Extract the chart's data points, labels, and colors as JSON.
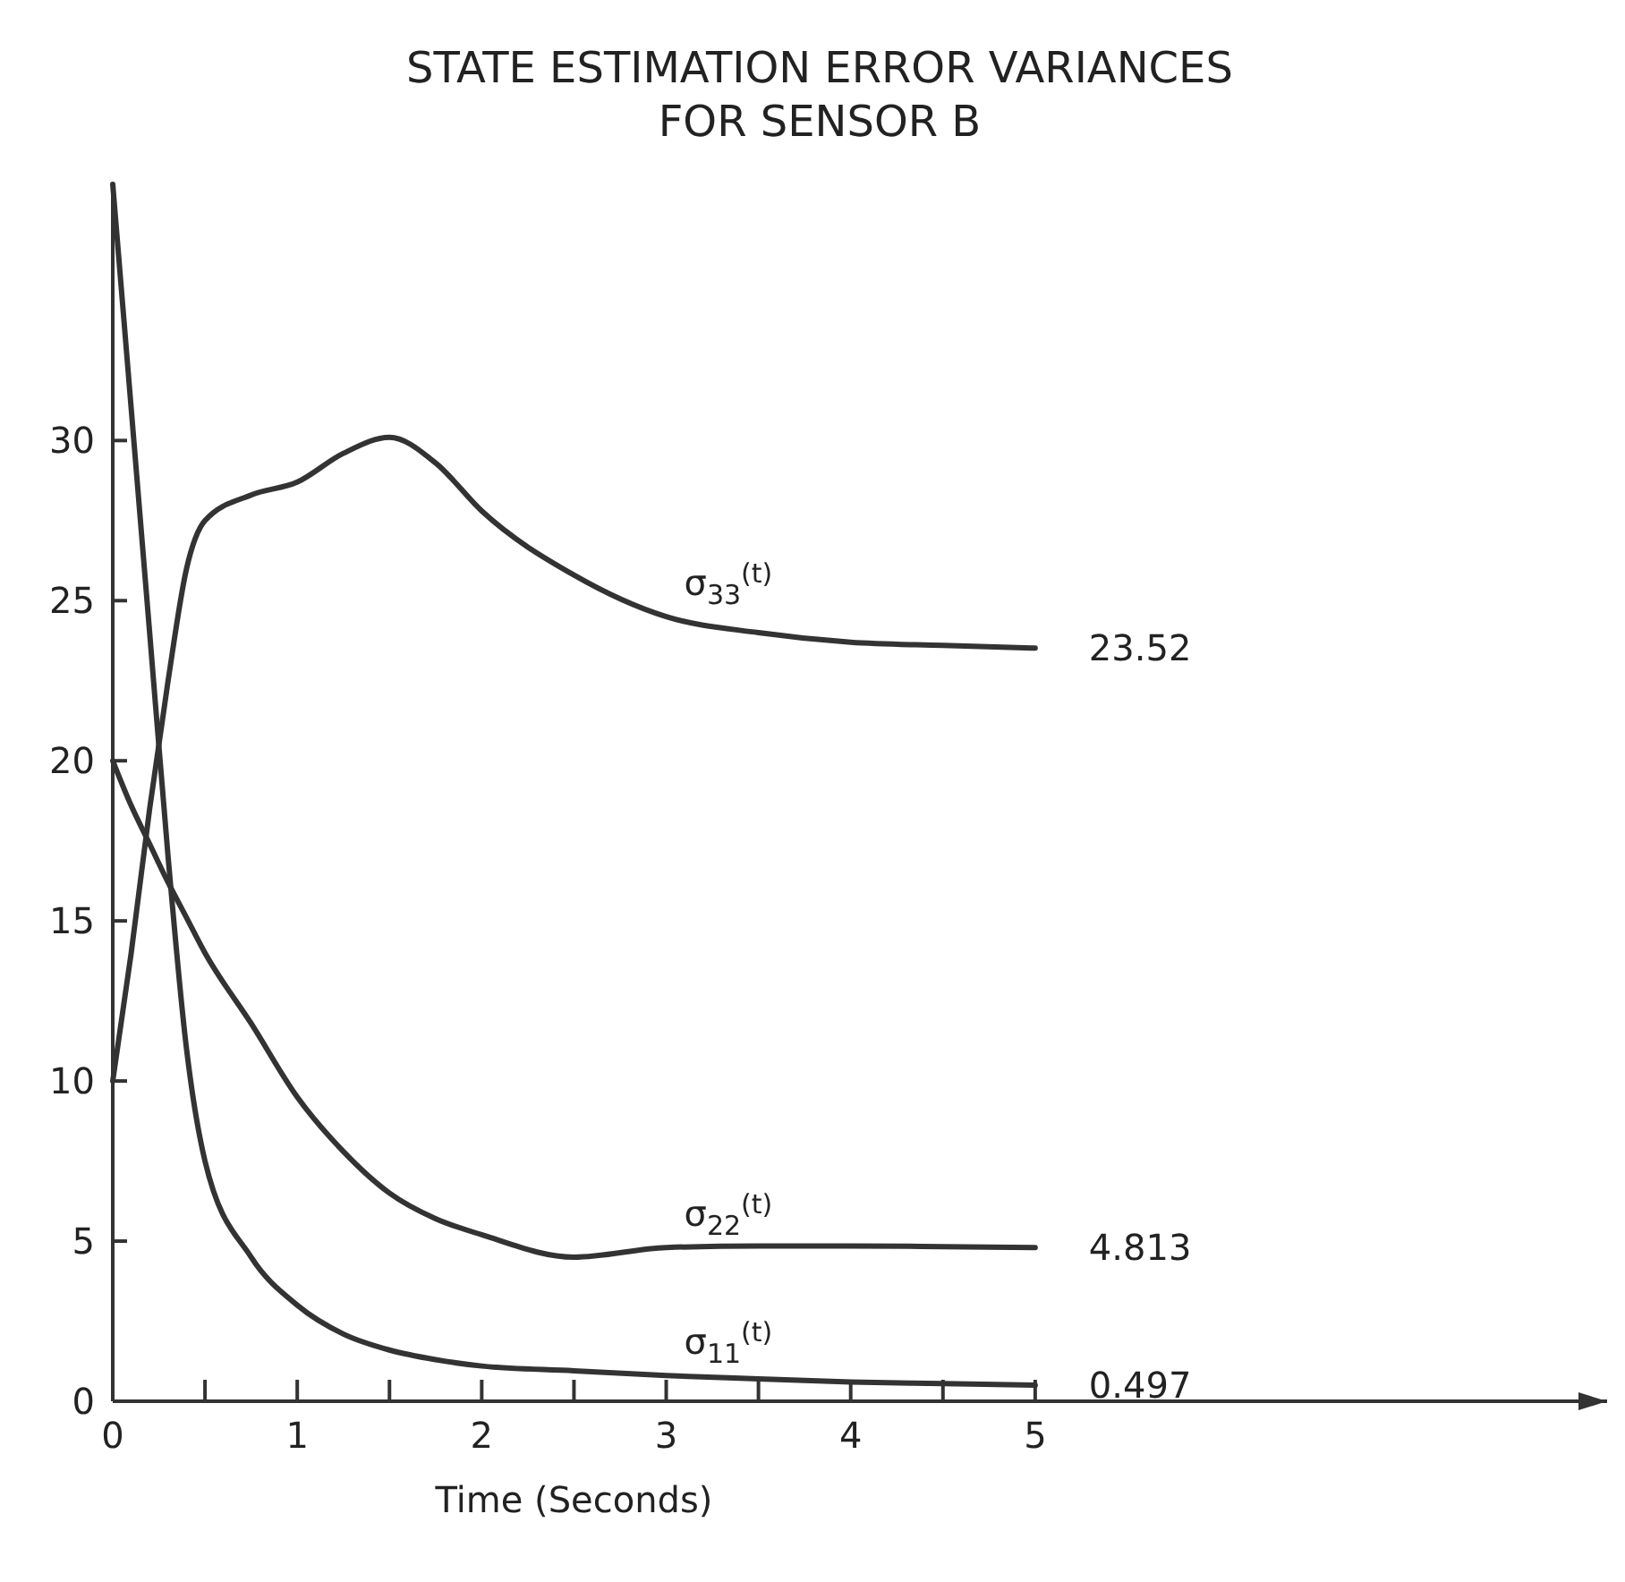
{
  "chart_data": {
    "type": "line",
    "title": "STATE ESTIMATION ERROR VARIANCES\nFOR SENSOR B",
    "xlabel": "Time (Seconds)",
    "x": [
      0,
      0.1,
      0.2,
      0.3,
      0.4,
      0.5,
      0.75,
      1,
      1.25,
      1.5,
      1.75,
      2,
      2.5,
      3,
      3.5,
      4,
      4.5,
      5
    ],
    "series": [
      {
        "name": "σ$_{33}$$^{(t)}$",
        "color": "#333333",
        "values": [
          10,
          14,
          18.5,
          22.5,
          26,
          27.5,
          28.3,
          28.7,
          29.6,
          30.1,
          29.3,
          27.8,
          25.8,
          24.5,
          24,
          23.7,
          23.6,
          23.52
        ]
      },
      {
        "name": "σ$_{22}$$^{(t)}$",
        "color": "#333333",
        "values": [
          20,
          18.6,
          17.4,
          16.2,
          15.1,
          14,
          11.8,
          9.5,
          7.8,
          6.5,
          5.7,
          5.2,
          4.5,
          4.8,
          4.85,
          4.85,
          4.83,
          4.8
        ]
      },
      {
        "name": "σ$_{11}$$^{(t)}$",
        "color": "#333333",
        "values": [
          38,
          31,
          24,
          17,
          11,
          7.5,
          4.5,
          3,
          2.1,
          1.6,
          1.3,
          1.1,
          0.95,
          0.8,
          0.7,
          0.6,
          0.55,
          0.5
        ]
      }
    ],
    "annotations": [
      "23.52",
      "4.813",
      "0.497"
    ],
    "xlim": [
      0,
      8.1
    ],
    "ylim": [
      0,
      38
    ],
    "xticks": [
      0,
      {
        "value": 0.5,
        "label": null
      },
      1,
      {
        "value": 1.5,
        "label": null
      },
      2,
      {
        "value": 2.5,
        "label": null
      },
      3,
      {
        "value": 3.5,
        "label": null
      },
      4,
      {
        "value": 4.5,
        "label": null
      },
      5
    ],
    "yticks": [
      0,
      5,
      10,
      15,
      20,
      25,
      30
    ],
    "grid": false,
    "marker": "none",
    "line_style": "solid"
  }
}
